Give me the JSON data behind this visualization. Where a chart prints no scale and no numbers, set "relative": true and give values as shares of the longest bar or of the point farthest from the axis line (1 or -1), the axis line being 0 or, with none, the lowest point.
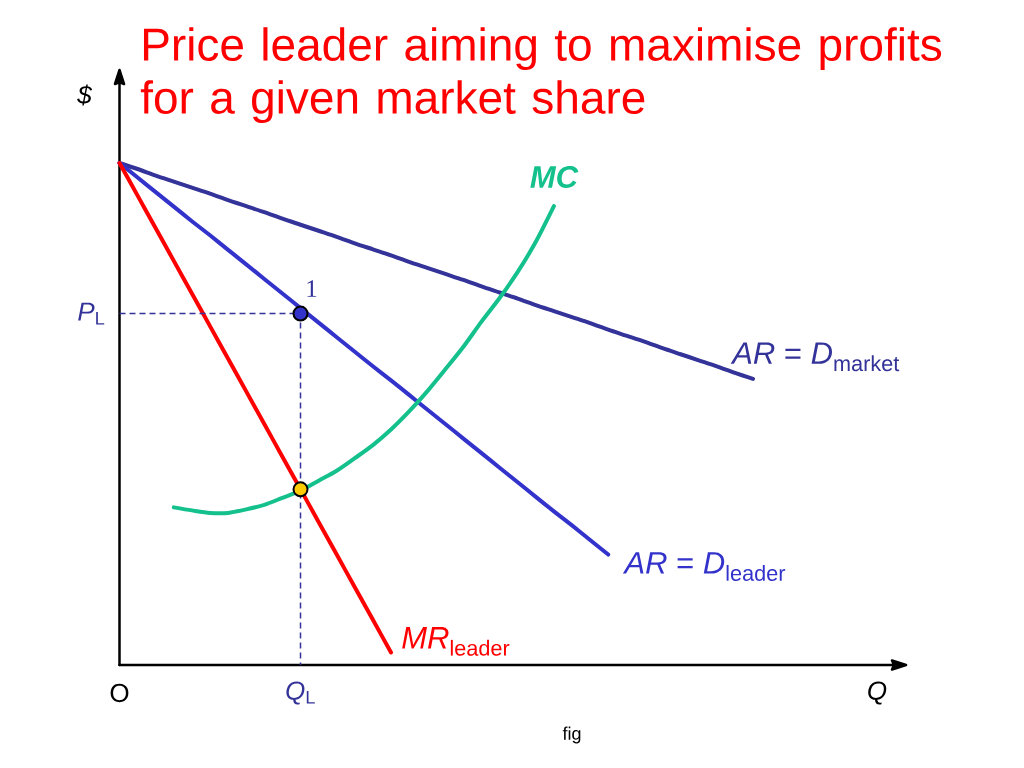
{
  "chart_data": {
    "type": "line",
    "title": "Price leader aiming to maximise profits for a given market share",
    "xlabel": "Q",
    "ylabel": "$",
    "relative": true,
    "categories": [
      "O",
      null,
      null,
      null,
      null,
      null,
      null,
      null,
      null,
      null,
      "*Q*$_{L}$",
      null,
      null,
      null,
      null,
      null,
      null,
      null,
      null,
      null,
      null,
      null,
      null,
      null,
      null,
      null,
      null,
      null,
      null,
      null,
      null,
      null,
      null,
      null,
      null,
      null
    ],
    "series": [
      {
        "name": "*AR* = *D*$_{market}$",
        "color": "#333399",
        "values": [
          1,
          0.988,
          0.975,
          0.963,
          0.951,
          0.939,
          0.926,
          0.914,
          0.902,
          0.889,
          0.877,
          0.865,
          0.853,
          0.84,
          0.828,
          0.816,
          0.803,
          0.791,
          0.779,
          0.767,
          0.754,
          0.742,
          0.73,
          0.717,
          0.705,
          0.693,
          0.681,
          0.668,
          0.656,
          0.644,
          0.631,
          0.619,
          0.607,
          0.595,
          0.582,
          0.57
        ]
      },
      {
        "name": "*AR* = *D*$_{leader}$",
        "color": "#3333cc",
        "values": [
          1,
          0.971,
          0.942,
          0.913,
          0.884,
          0.856,
          0.827,
          0.798,
          0.769,
          0.74,
          0.711,
          0.682,
          0.653,
          0.624,
          0.595,
          0.567,
          0.538,
          0.509,
          0.48,
          0.451,
          0.422,
          0.393,
          0.364,
          0.335,
          0.306,
          0.278,
          0.249,
          0.22,
          null,
          null,
          null,
          null,
          null,
          null,
          null,
          null
        ]
      },
      {
        "name": "*MR*$_{leader}$",
        "color": "#ff0000",
        "values": [
          1,
          0.935,
          0.87,
          0.805,
          0.74,
          0.675,
          0.61,
          0.545,
          0.48,
          0.415,
          0.35,
          0.285,
          0.22,
          0.155,
          0.09,
          0.025,
          null,
          null,
          null,
          null,
          null,
          null,
          null,
          null,
          null,
          null,
          null,
          null,
          null,
          null,
          null,
          null,
          null,
          null,
          null,
          null
        ]
      },
      {
        "name": "MC",
        "color": "#14c08c",
        "values": [
          null,
          null,
          null,
          0.314,
          0.308,
          0.303,
          0.303,
          0.31,
          0.319,
          0.333,
          0.347,
          0.367,
          0.387,
          0.412,
          0.438,
          0.469,
          0.505,
          0.545,
          0.589,
          0.634,
          0.684,
          0.731,
          0.783,
          0.843,
          0.914,
          null,
          null,
          null,
          null,
          null,
          null,
          null,
          null,
          null,
          null,
          null
        ]
      },
      {
        "name": "*P*$_{L}$",
        "type": "line",
        "line_style": "dashed",
        "color": "#333399",
        "x": [
          "O",
          "*Q*$_{L}$",
          "*Q*$_{L}$"
        ],
        "values": [
          0.7,
          0.7,
          0
        ]
      },
      {
        "type": "scatter",
        "marker": "circle",
        "color": "#3333cc",
        "values": [
          null,
          null,
          null,
          null,
          null,
          null,
          null,
          null,
          null,
          null,
          0.7,
          null,
          null,
          null,
          null,
          null,
          null,
          null,
          null,
          null,
          null,
          null,
          null,
          null,
          null,
          null,
          null,
          null,
          null,
          null,
          null,
          null,
          null,
          null,
          null,
          null
        ]
      },
      {
        "type": "scatter",
        "marker": "circle",
        "color": "#ffcc00",
        "values": [
          null,
          null,
          null,
          null,
          null,
          null,
          null,
          null,
          null,
          null,
          0.35,
          null,
          null,
          null,
          null,
          null,
          null,
          null,
          null,
          null,
          null,
          null,
          null,
          null,
          null,
          null,
          null,
          null,
          null,
          null,
          null,
          null,
          null,
          null,
          null,
          null
        ]
      }
    ],
    "annotations": [
      {
        "text": "1",
        "x": "*Q*$_{L}$",
        "y": 0.7
      },
      "fig"
    ]
  }
}
